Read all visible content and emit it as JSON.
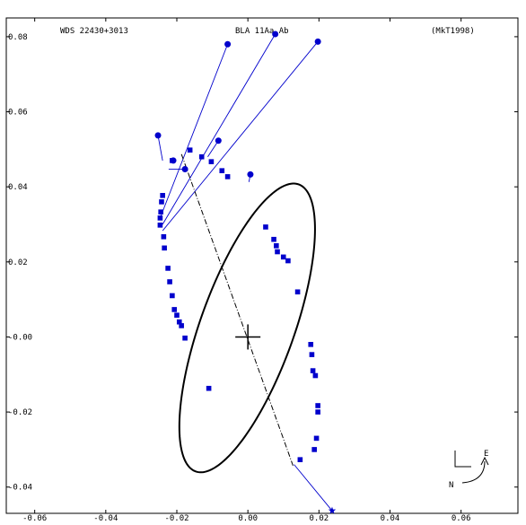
{
  "header": {
    "left": "WDS 22430+3013",
    "center": "BLA  11Aa,Ab",
    "right": "(MkT1998)"
  },
  "compass": {
    "east": "E",
    "north": "N"
  },
  "chart_data": {
    "type": "scatter",
    "title": "",
    "xlabel": "",
    "ylabel": "",
    "xlim": [
      -0.068,
      0.076
    ],
    "ylim": [
      -0.047,
      0.085
    ],
    "x_ticks": [
      "-0.06",
      "-0.04",
      "-0.02",
      "0.00",
      "0.02",
      "0.04",
      "0.06"
    ],
    "x_tick_values": [
      -0.06,
      -0.04,
      -0.02,
      0.0,
      0.02,
      0.04,
      0.06
    ],
    "y_ticks": [
      "-0.04",
      "-0.02",
      "-0.00",
      "0.02",
      "0.04",
      "0.06",
      "0.08"
    ],
    "y_tick_values": [
      -0.04,
      -0.02,
      0.0,
      0.02,
      0.04,
      0.06,
      0.08
    ],
    "orbit": {
      "center": [
        -0.0002,
        0.0024
      ],
      "semi_axes": [
        0.0131,
        0.0409
      ],
      "rotation_deg": 21,
      "color": "#000000"
    },
    "line_of_nodes": [
      [
        -0.0187,
        0.0487
      ],
      [
        0.0127,
        -0.0343
      ]
    ],
    "primary": [
      0.0,
      0.0
    ],
    "observations_square": [
      [
        -0.0247,
        0.0317
      ],
      [
        -0.0245,
        0.0333
      ],
      [
        -0.0247,
        0.0298
      ],
      [
        -0.024,
        0.0377
      ],
      [
        -0.0243,
        0.036
      ],
      [
        -0.0237,
        0.0267
      ],
      [
        -0.0235,
        0.0237
      ],
      [
        -0.0225,
        0.0183
      ],
      [
        -0.022,
        0.0147
      ],
      [
        -0.0213,
        0.011
      ],
      [
        -0.0207,
        0.0073
      ],
      [
        -0.02,
        0.0058
      ],
      [
        -0.0193,
        0.004
      ],
      [
        -0.0187,
        0.003
      ],
      [
        -0.0177,
        -0.0003
      ],
      [
        -0.011,
        -0.0137
      ],
      [
        -0.0213,
        0.047
      ],
      [
        -0.0163,
        0.0498
      ],
      [
        -0.013,
        0.048
      ],
      [
        -0.0103,
        0.0467
      ],
      [
        -0.0073,
        0.0443
      ],
      [
        -0.0057,
        0.0427
      ],
      [
        0.005,
        0.0293
      ],
      [
        0.0073,
        0.026
      ],
      [
        0.008,
        0.0243
      ],
      [
        0.0083,
        0.0227
      ],
      [
        0.01,
        0.0213
      ],
      [
        0.0113,
        0.0203
      ],
      [
        0.014,
        0.012
      ],
      [
        0.0177,
        -0.002
      ],
      [
        0.018,
        -0.0047
      ],
      [
        0.0183,
        -0.009
      ],
      [
        0.019,
        -0.0103
      ],
      [
        0.0197,
        -0.0183
      ],
      [
        0.0197,
        -0.02
      ],
      [
        0.0193,
        -0.027
      ],
      [
        0.0187,
        -0.03
      ],
      [
        0.0147,
        -0.0327
      ]
    ],
    "observations_circle": [
      [
        -0.0253,
        0.0537
      ],
      [
        -0.0083,
        0.0523
      ],
      [
        0.0007,
        0.0433
      ],
      [
        -0.0177,
        0.0447
      ],
      [
        -0.0057,
        0.078
      ],
      [
        0.0077,
        0.0807
      ],
      [
        0.0197,
        0.0787
      ],
      [
        -0.021,
        0.047
      ]
    ],
    "observation_color": "#0000cc",
    "residuals": [
      [
        [
          -0.0253,
          0.0537
        ],
        [
          -0.024,
          0.047
        ]
      ],
      [
        [
          -0.0083,
          0.0523
        ],
        [
          -0.0113,
          0.048
        ]
      ],
      [
        [
          0.0007,
          0.0433
        ],
        [
          0.0003,
          0.0413
        ]
      ],
      [
        [
          -0.0177,
          0.0447
        ],
        [
          -0.0223,
          0.0447
        ]
      ]
    ],
    "long_lines": [
      [
        [
          -0.0057,
          0.078
        ],
        [
          -0.0247,
          0.0317
        ]
      ],
      [
        [
          0.0077,
          0.0807
        ],
        [
          -0.024,
          0.03
        ]
      ],
      [
        [
          0.0197,
          0.0787
        ],
        [
          -0.024,
          0.0283
        ]
      ],
      [
        [
          0.0237,
          -0.0463
        ],
        [
          0.013,
          -0.034
        ]
      ]
    ],
    "star": [
      0.0237,
      -0.0463
    ]
  }
}
